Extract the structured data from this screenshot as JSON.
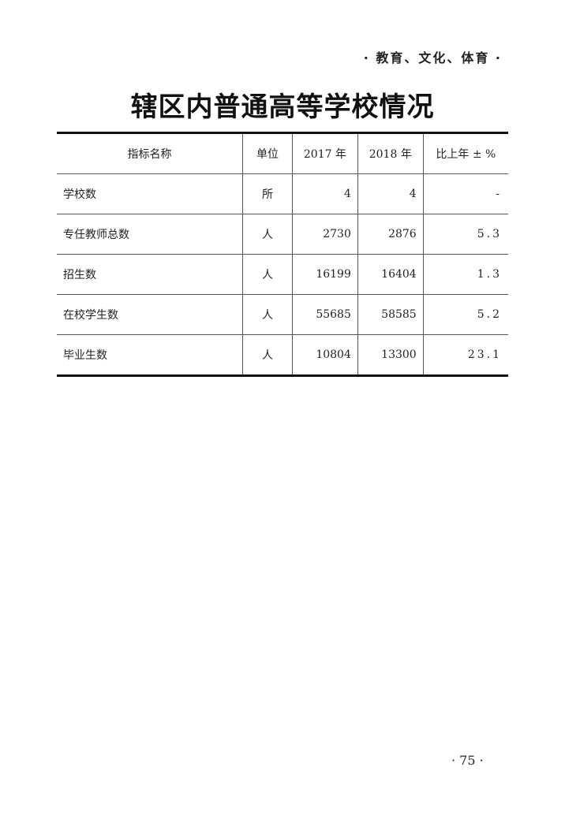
{
  "header": {
    "section": "· 教育、文化、体育 ·"
  },
  "title": "辖区内普通高等学校情况",
  "table": {
    "columns": [
      "指标名称",
      "单位",
      "2017 年",
      "2018 年",
      "比上年 ± %"
    ],
    "rows": [
      [
        "学校数",
        "所",
        "4",
        "4",
        "-"
      ],
      [
        "专任教师总数",
        "人",
        "2730",
        "2876",
        "5.3"
      ],
      [
        "招生数",
        "人",
        "16199",
        "16404",
        "1.3"
      ],
      [
        "在校学生数",
        "人",
        "55685",
        "58585",
        "5.2"
      ],
      [
        "毕业生数",
        "人",
        "10804",
        "13300",
        "23.1"
      ]
    ]
  },
  "footer": {
    "page_number": "· 75 ·"
  }
}
